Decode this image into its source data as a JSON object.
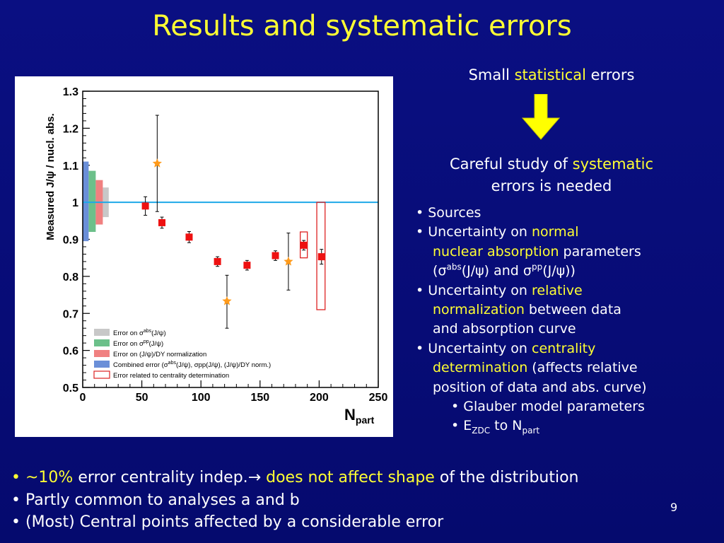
{
  "slide": {
    "title": "Results and systematic errors",
    "page_number": "9",
    "accent_color": "#ffff33",
    "background_color": "#0a0f82"
  },
  "right": {
    "small_pre": "Small ",
    "small_hl": "statistical",
    "small_post": " errors",
    "careful_pre": "Careful study of ",
    "careful_hl": "systematic",
    "careful_line2": "errors is needed",
    "arrow_icon": "down-arrow-icon",
    "b1": "Sources",
    "b2_pre": "Uncertainty on ",
    "b2_hl": "normal",
    "b2_l2_hl": "nuclear absorption",
    "b2_l2_post": " parameters",
    "b2_l3_open": "(",
    "b2_l3_sigma1": "σ",
    "b2_l3_sup1": "abs",
    "b2_l3_mid": "(J/ψ) and ",
    "b2_l3_sigma2": "σ",
    "b2_l3_sup2": "pp",
    "b2_l3_close": "(J/ψ))",
    "b3_pre": "Uncertainty on ",
    "b3_hl": "relative",
    "b3_l2_hl": "normalization",
    "b3_l2_post": " between data",
    "b3_l3": "and absorption curve",
    "b4_pre": "Uncertainty on ",
    "b4_hl": "centrality",
    "b4_l2_hl": "determination",
    "b4_l2_post": " (affects relative",
    "b4_l3": "position of data and abs. curve)",
    "b5": "Glauber model parameters",
    "b6_pre": "E",
    "b6_sub1": "ZDC",
    "b6_mid": " to N",
    "b6_sub2": "part"
  },
  "bottom": {
    "l1_hl1": "~10%",
    "l1_mid": " error centrality indep.",
    "l1_arrow": "→",
    "l1_hl2": " does not affect shape",
    "l1_post": " of the distribution",
    "l2": "Partly common to analyses a and b",
    "l3": "(Most) Central points affected by a considerable error"
  },
  "chart_data": {
    "type": "scatter",
    "ylabel": "Measured J/ψ / nucl. abs.",
    "xlabel_main": "N",
    "xlabel_sub": "part",
    "xlim": [
      0,
      250
    ],
    "ylim": [
      0.5,
      1.3
    ],
    "xticks": [
      0,
      50,
      100,
      150,
      200,
      250
    ],
    "yticks": [
      0.5,
      0.6,
      0.7,
      0.8,
      0.9,
      1,
      1.1,
      1.2,
      1.3
    ],
    "reference_line": 1.0,
    "reference_color": "#1ea8e8",
    "series": [
      {
        "marker": "square",
        "color": "#ee1111",
        "points": [
          {
            "x": 53,
            "y": 0.99,
            "err": 0.025
          },
          {
            "x": 67,
            "y": 0.945,
            "err": 0.015
          },
          {
            "x": 90,
            "y": 0.906,
            "err": 0.015
          },
          {
            "x": 114,
            "y": 0.84,
            "err": 0.013
          },
          {
            "x": 139,
            "y": 0.83,
            "err": 0.013
          },
          {
            "x": 163,
            "y": 0.856,
            "err": 0.013
          },
          {
            "x": 187,
            "y": 0.884,
            "err": 0.013
          },
          {
            "x": 202,
            "y": 0.853,
            "err": 0.02
          }
        ]
      },
      {
        "marker": "star",
        "color": "#ff9a1a",
        "points": [
          {
            "x": 63,
            "y": 1.105,
            "errlo": 0.13,
            "errhi": 0.13
          },
          {
            "x": 122,
            "y": 0.733,
            "errlo": 0.073,
            "errhi": 0.07
          },
          {
            "x": 174,
            "y": 0.84,
            "errlo": 0.077,
            "errhi": 0.077
          }
        ]
      }
    ],
    "systematic_bands": [
      {
        "label_prefix": "Error on σ",
        "label_sup": "abs",
        "label_suffix": "(J/ψ)",
        "color": "#c8c8c8",
        "x": [
          17,
          22
        ],
        "y": [
          0.96,
          1.04
        ]
      },
      {
        "label_prefix": "Error on σ",
        "label_sup": "pp",
        "label_suffix": "(J/ψ)",
        "color": "#6cc08a",
        "x": [
          5,
          11
        ],
        "y": [
          0.92,
          1.085
        ]
      },
      {
        "label_prefix": "Error on (J/ψ)/DY normalization",
        "label_sup": "",
        "label_suffix": "",
        "color": "#f08080",
        "x": [
          11,
          17
        ],
        "y": [
          0.94,
          1.06
        ]
      },
      {
        "label_prefix": "Combined error (σ",
        "label_sup": "abs",
        "label_suffix": "(J/ψ), σpp(J/ψ), (J/ψ)/DY norm.)",
        "color": "#6a8fd8",
        "x": [
          0,
          5
        ],
        "y": [
          0.895,
          1.11
        ]
      }
    ],
    "centrality_boxes_label": "Error related to centrality determination",
    "centrality_boxes_color": "#dd2222",
    "centrality_boxes": [
      {
        "x": [
          184,
          190
        ],
        "y": [
          0.85,
          0.92
        ]
      },
      {
        "x": [
          198,
          205
        ],
        "y": [
          0.71,
          1.0
        ]
      }
    ]
  }
}
